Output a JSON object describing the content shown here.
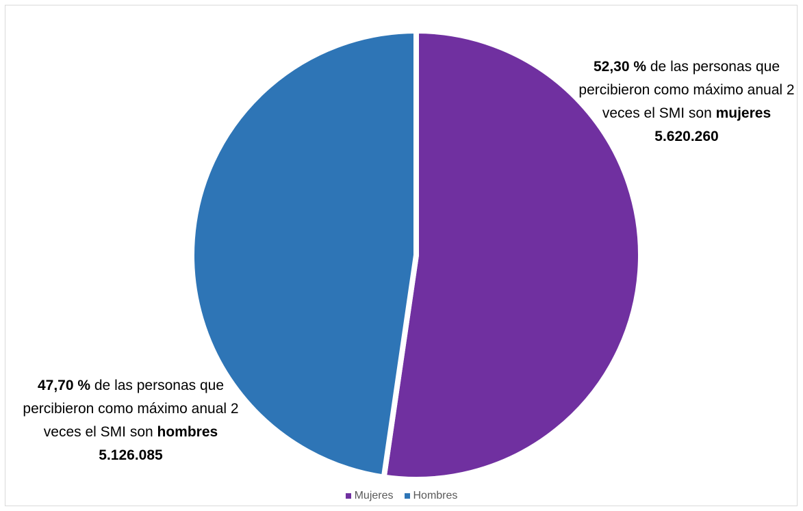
{
  "chart_data": {
    "type": "pie",
    "title": "",
    "slices": [
      {
        "name": "Mujeres",
        "value": 52.3,
        "count": "5.620.260",
        "color": "#7030A0"
      },
      {
        "name": "Hombres",
        "value": 47.7,
        "count": "5.126.085",
        "color": "#2E75B6"
      }
    ],
    "legend_position": "bottom",
    "labels": {
      "mujeres": {
        "percent": "52,30 %",
        "text_a": " de las personas que percibieron como máximo anual 2 veces el SMI son ",
        "group": "mujeres",
        "count": "5.620.260"
      },
      "hombres": {
        "percent": "47,70 %",
        "text_a": " de las personas que percibieron como máximo anual 2 veces el SMI son ",
        "group": "hombres",
        "count": "5.126.085"
      }
    }
  }
}
